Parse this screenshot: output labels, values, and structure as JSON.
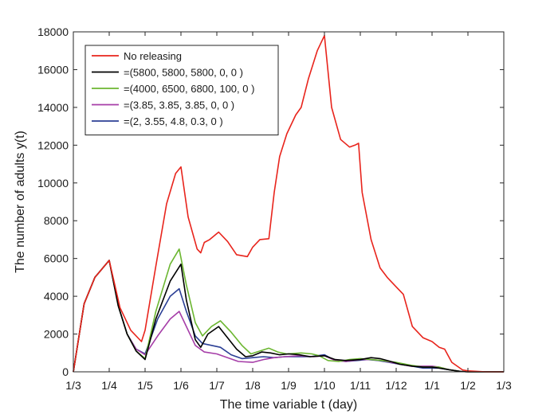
{
  "chart_data": {
    "type": "line",
    "xlabel": "The time variable t (day)",
    "ylabel": "The number of adults y(t)",
    "ylim": [
      0,
      18000
    ],
    "y_ticks": [
      0,
      2000,
      4000,
      6000,
      8000,
      10000,
      12000,
      14000,
      16000,
      18000
    ],
    "x_ticks": [
      "1/3",
      "1/4",
      "1/5",
      "1/6",
      "1/7",
      "1/8",
      "1/9",
      "1/10",
      "1/11",
      "1/12",
      "1/1",
      "1/2",
      "1/3"
    ],
    "grid": false,
    "legend_position": "top-left",
    "series": [
      {
        "name": "No releasing",
        "color": "#e8241c",
        "points": [
          [
            0,
            0
          ],
          [
            0.3,
            3600
          ],
          [
            0.6,
            5000
          ],
          [
            1,
            5900
          ],
          [
            1.3,
            3400
          ],
          [
            1.6,
            2200
          ],
          [
            1.9,
            1600
          ],
          [
            2,
            2200
          ],
          [
            2.3,
            5600
          ],
          [
            2.6,
            8900
          ],
          [
            2.85,
            10500
          ],
          [
            3,
            10850
          ],
          [
            3.2,
            8200
          ],
          [
            3.45,
            6500
          ],
          [
            3.55,
            6300
          ],
          [
            3.65,
            6850
          ],
          [
            3.8,
            7000
          ],
          [
            4.05,
            7400
          ],
          [
            4.3,
            6900
          ],
          [
            4.55,
            6200
          ],
          [
            4.85,
            6100
          ],
          [
            5,
            6600
          ],
          [
            5.2,
            7000
          ],
          [
            5.45,
            7050
          ],
          [
            5.6,
            9500
          ],
          [
            5.75,
            11400
          ],
          [
            5.95,
            12600
          ],
          [
            6.2,
            13600
          ],
          [
            6.35,
            14000
          ],
          [
            6.55,
            15500
          ],
          [
            6.8,
            17000
          ],
          [
            7,
            17800
          ],
          [
            7.2,
            14000
          ],
          [
            7.45,
            12300
          ],
          [
            7.7,
            11900
          ],
          [
            7.85,
            12000
          ],
          [
            7.95,
            12100
          ],
          [
            8.05,
            9500
          ],
          [
            8.3,
            7000
          ],
          [
            8.55,
            5500
          ],
          [
            8.75,
            5000
          ],
          [
            9,
            4500
          ],
          [
            9.2,
            4100
          ],
          [
            9.45,
            2400
          ],
          [
            9.75,
            1800
          ],
          [
            10,
            1600
          ],
          [
            10.2,
            1300
          ],
          [
            10.35,
            1200
          ],
          [
            10.55,
            500
          ],
          [
            10.85,
            100
          ],
          [
            11,
            50
          ],
          [
            11.5,
            0
          ],
          [
            12,
            0
          ]
        ]
      },
      {
        "name": "=(5800, 5800, 5800, 0, 0 )",
        "color": "#000000",
        "points": [
          [
            0,
            0
          ],
          [
            0.3,
            3600
          ],
          [
            0.6,
            5000
          ],
          [
            1,
            5900
          ],
          [
            1.25,
            3500
          ],
          [
            1.5,
            2000
          ],
          [
            1.75,
            1100
          ],
          [
            2,
            650
          ],
          [
            2.3,
            2800
          ],
          [
            2.7,
            4800
          ],
          [
            3,
            5700
          ],
          [
            3.15,
            3800
          ],
          [
            3.4,
            1700
          ],
          [
            3.55,
            1300
          ],
          [
            3.75,
            2000
          ],
          [
            4.05,
            2400
          ],
          [
            4.3,
            1800
          ],
          [
            4.55,
            1200
          ],
          [
            4.8,
            800
          ],
          [
            5,
            850
          ],
          [
            5.25,
            1050
          ],
          [
            5.5,
            1000
          ],
          [
            5.75,
            900
          ],
          [
            6,
            950
          ],
          [
            6.3,
            900
          ],
          [
            6.6,
            800
          ],
          [
            7,
            850
          ],
          [
            7.3,
            650
          ],
          [
            7.6,
            600
          ],
          [
            8,
            650
          ],
          [
            8.3,
            750
          ],
          [
            8.55,
            700
          ],
          [
            8.85,
            550
          ],
          [
            9.1,
            400
          ],
          [
            9.45,
            300
          ],
          [
            9.75,
            250
          ],
          [
            10,
            250
          ],
          [
            10.2,
            200
          ],
          [
            10.5,
            100
          ],
          [
            10.8,
            20
          ],
          [
            11,
            0
          ],
          [
            12,
            0
          ]
        ]
      },
      {
        "name": "=(4000, 6500, 6800, 100, 0 )",
        "color": "#6bb630",
        "points": [
          [
            0,
            0
          ],
          [
            0.3,
            3600
          ],
          [
            0.6,
            5000
          ],
          [
            1,
            5900
          ],
          [
            1.25,
            3500
          ],
          [
            1.5,
            2000
          ],
          [
            1.75,
            1100
          ],
          [
            2,
            700
          ],
          [
            2.3,
            3200
          ],
          [
            2.7,
            5700
          ],
          [
            2.95,
            6500
          ],
          [
            3.15,
            4600
          ],
          [
            3.4,
            2600
          ],
          [
            3.6,
            1900
          ],
          [
            3.85,
            2400
          ],
          [
            4.1,
            2700
          ],
          [
            4.4,
            2100
          ],
          [
            4.7,
            1400
          ],
          [
            4.95,
            950
          ],
          [
            5.2,
            1100
          ],
          [
            5.45,
            1250
          ],
          [
            5.7,
            1050
          ],
          [
            5.95,
            950
          ],
          [
            6.35,
            1000
          ],
          [
            6.65,
            950
          ],
          [
            6.85,
            850
          ],
          [
            7.1,
            600
          ],
          [
            7.4,
            550
          ],
          [
            7.7,
            650
          ],
          [
            8,
            700
          ],
          [
            8.3,
            650
          ],
          [
            8.6,
            600
          ],
          [
            9,
            500
          ],
          [
            9.4,
            350
          ],
          [
            9.75,
            250
          ],
          [
            10,
            250
          ],
          [
            10.2,
            250
          ],
          [
            10.5,
            100
          ],
          [
            10.8,
            20
          ],
          [
            11,
            0
          ],
          [
            12,
            0
          ]
        ]
      },
      {
        "name": "=(3.85, 3.85, 3.85, 0, 0 )",
        "color": "#a63ea8",
        "points": [
          [
            0,
            0
          ],
          [
            0.3,
            3600
          ],
          [
            0.6,
            5000
          ],
          [
            1,
            5900
          ],
          [
            1.25,
            3500
          ],
          [
            1.5,
            2000
          ],
          [
            1.75,
            1200
          ],
          [
            2,
            900
          ],
          [
            2.35,
            1900
          ],
          [
            2.7,
            2800
          ],
          [
            2.95,
            3200
          ],
          [
            3.15,
            2400
          ],
          [
            3.4,
            1400
          ],
          [
            3.65,
            1050
          ],
          [
            4,
            950
          ],
          [
            4.3,
            750
          ],
          [
            4.6,
            550
          ],
          [
            5,
            500
          ],
          [
            5.3,
            650
          ],
          [
            5.6,
            750
          ],
          [
            5.9,
            800
          ],
          [
            6.3,
            850
          ],
          [
            6.7,
            800
          ],
          [
            7,
            850
          ],
          [
            7.3,
            600
          ],
          [
            7.6,
            550
          ],
          [
            8,
            650
          ],
          [
            8.3,
            650
          ],
          [
            8.6,
            600
          ],
          [
            9,
            450
          ],
          [
            9.4,
            300
          ],
          [
            9.75,
            300
          ],
          [
            10,
            300
          ],
          [
            10.2,
            250
          ],
          [
            10.5,
            100
          ],
          [
            10.8,
            20
          ],
          [
            11,
            0
          ],
          [
            12,
            0
          ]
        ]
      },
      {
        "name": "=(2, 3.55, 4.8, 0.3, 0 )",
        "color": "#2b3f95",
        "points": [
          [
            0,
            0
          ],
          [
            0.3,
            3600
          ],
          [
            0.6,
            5000
          ],
          [
            1,
            5900
          ],
          [
            1.25,
            3500
          ],
          [
            1.5,
            2000
          ],
          [
            1.75,
            1200
          ],
          [
            2,
            950
          ],
          [
            2.35,
            2800
          ],
          [
            2.7,
            4000
          ],
          [
            2.95,
            4400
          ],
          [
            3.15,
            3200
          ],
          [
            3.4,
            1900
          ],
          [
            3.6,
            1500
          ],
          [
            3.85,
            1400
          ],
          [
            4.1,
            1300
          ],
          [
            4.4,
            900
          ],
          [
            4.7,
            700
          ],
          [
            5,
            750
          ],
          [
            5.3,
            800
          ],
          [
            5.6,
            750
          ],
          [
            5.9,
            800
          ],
          [
            6.25,
            800
          ],
          [
            6.6,
            800
          ],
          [
            7,
            900
          ],
          [
            7.3,
            600
          ],
          [
            7.6,
            550
          ],
          [
            7.9,
            600
          ],
          [
            8.2,
            650
          ],
          [
            8.5,
            600
          ],
          [
            8.8,
            500
          ],
          [
            9.1,
            400
          ],
          [
            9.45,
            300
          ],
          [
            9.75,
            200
          ],
          [
            10,
            200
          ],
          [
            10.2,
            200
          ],
          [
            10.5,
            100
          ],
          [
            10.8,
            20
          ],
          [
            11,
            0
          ],
          [
            12,
            0
          ]
        ]
      }
    ]
  }
}
